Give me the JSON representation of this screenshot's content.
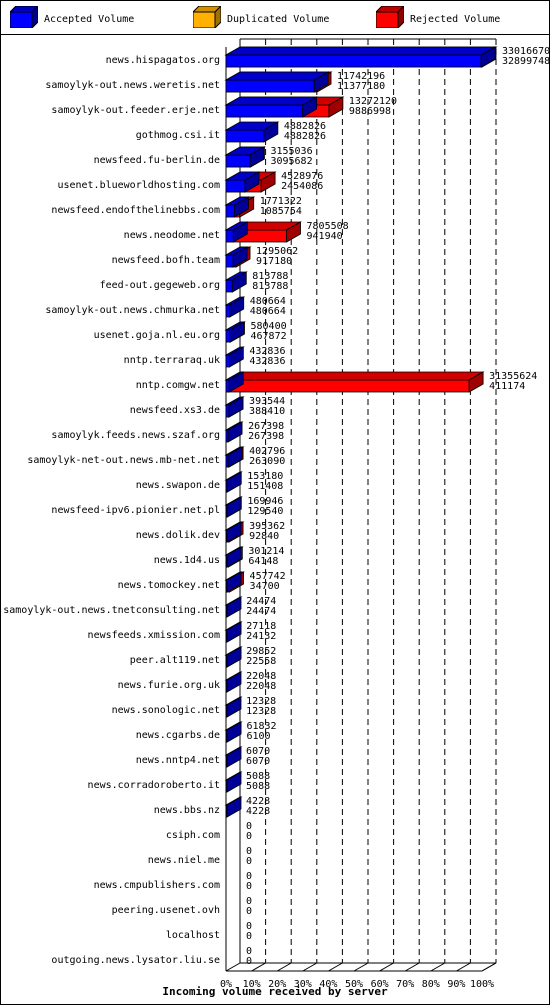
{
  "legend": {
    "accepted": "Accepted Volume",
    "duplicated": "Duplicated Volume",
    "rejected": "Rejected Volume"
  },
  "colors": {
    "accepted": "#0000ff",
    "duplicated": "#ffb000",
    "rejected": "#ff0000"
  },
  "chart_data": {
    "type": "bar",
    "orientation": "horizontal",
    "xlabel": "Incoming volume received by server",
    "xlim": [
      0,
      100
    ],
    "x_unit": "%",
    "x_ticks": [
      "0%",
      "10%",
      "20%",
      "30%",
      "40%",
      "50%",
      "60%",
      "70%",
      "80%",
      "90%",
      "100%"
    ],
    "grid": "vertical dashed",
    "legend_position": "top",
    "max_value": 33016670,
    "servers": [
      {
        "name": "news.hispagatos.org",
        "total": 33016670,
        "accepted": 32899748
      },
      {
        "name": "samoylyk-out.news.weretis.net",
        "total": 11742196,
        "accepted": 11377180
      },
      {
        "name": "samoylyk-out.feeder.erje.net",
        "total": 13272120,
        "accepted": 9886998
      },
      {
        "name": "gothmog.csi.it",
        "total": 4882826,
        "accepted": 4882826
      },
      {
        "name": "newsfeed.fu-berlin.de",
        "total": 3155036,
        "accepted": 3095682
      },
      {
        "name": "usenet.blueworldhosting.com",
        "total": 4528976,
        "accepted": 2454086
      },
      {
        "name": "newsfeed.endofthelinebbs.com",
        "total": 1771322,
        "accepted": 1085754
      },
      {
        "name": "news.neodome.net",
        "total": 7805508,
        "accepted": 941940
      },
      {
        "name": "newsfeed.bofh.team",
        "total": 1295062,
        "accepted": 917180
      },
      {
        "name": "feed-out.gegeweb.org",
        "total": 813788,
        "accepted": 813788
      },
      {
        "name": "samoylyk-out.news.chmurka.net",
        "total": 480664,
        "accepted": 480664
      },
      {
        "name": "usenet.goja.nl.eu.org",
        "total": 580400,
        "accepted": 467872
      },
      {
        "name": "nntp.terraraq.uk",
        "total": 432836,
        "accepted": 432836
      },
      {
        "name": "nntp.comgw.net",
        "total": 31355624,
        "accepted": 411174
      },
      {
        "name": "newsfeed.xs3.de",
        "total": 393544,
        "accepted": 388410
      },
      {
        "name": "samoylyk.feeds.news.szaf.org",
        "total": 267398,
        "accepted": 267398
      },
      {
        "name": "samoylyk-net-out.news.mb-net.net",
        "total": 402796,
        "accepted": 263090
      },
      {
        "name": "news.swapon.de",
        "total": 153180,
        "accepted": 151408
      },
      {
        "name": "newsfeed-ipv6.pionier.net.pl",
        "total": 169946,
        "accepted": 129540
      },
      {
        "name": "news.dolik.dev",
        "total": 395362,
        "accepted": 92840
      },
      {
        "name": "news.1d4.us",
        "total": 301214,
        "accepted": 64148
      },
      {
        "name": "news.tomockey.net",
        "total": 457742,
        "accepted": 34700
      },
      {
        "name": "samoylyk-out.news.tnetconsulting.net",
        "total": 24474,
        "accepted": 24474
      },
      {
        "name": "newsfeeds.xmission.com",
        "total": 27118,
        "accepted": 24132
      },
      {
        "name": "peer.alt119.net",
        "total": 29852,
        "accepted": 22558
      },
      {
        "name": "news.furie.org.uk",
        "total": 22048,
        "accepted": 22048
      },
      {
        "name": "news.sonologic.net",
        "total": 12328,
        "accepted": 12328
      },
      {
        "name": "news.cgarbs.de",
        "total": 61832,
        "accepted": 6100
      },
      {
        "name": "news.nntp4.net",
        "total": 6070,
        "accepted": 6070
      },
      {
        "name": "news.corradoroberto.it",
        "total": 5088,
        "accepted": 5088
      },
      {
        "name": "news.bbs.nz",
        "total": 4228,
        "accepted": 4228
      },
      {
        "name": "csiph.com",
        "total": 0,
        "accepted": 0
      },
      {
        "name": "news.niel.me",
        "total": 0,
        "accepted": 0
      },
      {
        "name": "news.cmpublishers.com",
        "total": 0,
        "accepted": 0
      },
      {
        "name": "peering.usenet.ovh",
        "total": 0,
        "accepted": 0
      },
      {
        "name": "localhost",
        "total": 0,
        "accepted": 0
      },
      {
        "name": "outgoing.news.lysator.liu.se",
        "total": 0,
        "accepted": 0
      }
    ]
  }
}
